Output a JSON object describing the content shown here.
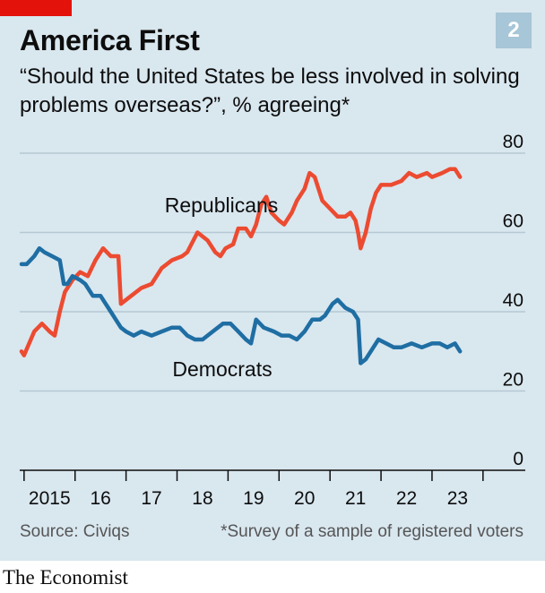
{
  "header": {
    "title": "America First",
    "chart_number": "2",
    "subtitle": "“Should the United States be less involved in solving problems overseas?”, % agreeing*"
  },
  "footer": {
    "source": "Source: Civiqs",
    "footnote": "*Survey of a sample of registered voters",
    "brand": "The Economist"
  },
  "colors": {
    "republicans": "#ec4b31",
    "democrats": "#1f6ea3",
    "background": "#d9e7ef",
    "grid": "#b5c8d3",
    "accent": "#e3120b"
  },
  "chart_data": {
    "type": "line",
    "title": "America First",
    "ylim": [
      0,
      80
    ],
    "y_ticks": [
      0,
      20,
      40,
      60,
      80
    ],
    "x_ticks": [
      "2015",
      "16",
      "17",
      "18",
      "19",
      "20",
      "21",
      "22",
      "23"
    ],
    "xlim": [
      2014.95,
      2023.95
    ],
    "grid": true,
    "series": [
      {
        "name": "Republicans",
        "points": [
          [
            2014.95,
            30
          ],
          [
            2015.0,
            29
          ],
          [
            2015.1,
            32
          ],
          [
            2015.2,
            35
          ],
          [
            2015.35,
            37
          ],
          [
            2015.5,
            35
          ],
          [
            2015.6,
            34
          ],
          [
            2015.7,
            40
          ],
          [
            2015.8,
            45
          ],
          [
            2015.95,
            48
          ],
          [
            2016.1,
            50
          ],
          [
            2016.25,
            49
          ],
          [
            2016.4,
            53
          ],
          [
            2016.55,
            56
          ],
          [
            2016.7,
            54
          ],
          [
            2016.85,
            54
          ],
          [
            2016.9,
            42
          ],
          [
            2017.1,
            44
          ],
          [
            2017.3,
            46
          ],
          [
            2017.5,
            47
          ],
          [
            2017.7,
            51
          ],
          [
            2017.9,
            53
          ],
          [
            2018.1,
            54
          ],
          [
            2018.2,
            55
          ],
          [
            2018.4,
            60
          ],
          [
            2018.6,
            58
          ],
          [
            2018.75,
            55
          ],
          [
            2018.85,
            54
          ],
          [
            2018.95,
            56
          ],
          [
            2019.1,
            57
          ],
          [
            2019.2,
            61
          ],
          [
            2019.35,
            61
          ],
          [
            2019.45,
            59
          ],
          [
            2019.55,
            62
          ],
          [
            2019.65,
            67
          ],
          [
            2019.75,
            69
          ],
          [
            2019.85,
            65
          ],
          [
            2020.0,
            63
          ],
          [
            2020.1,
            62
          ],
          [
            2020.25,
            65
          ],
          [
            2020.35,
            68
          ],
          [
            2020.5,
            71
          ],
          [
            2020.6,
            75
          ],
          [
            2020.7,
            74
          ],
          [
            2020.85,
            68
          ],
          [
            2021.0,
            66
          ],
          [
            2021.15,
            64
          ],
          [
            2021.3,
            64
          ],
          [
            2021.4,
            65
          ],
          [
            2021.5,
            63
          ],
          [
            2021.55,
            60
          ],
          [
            2021.6,
            56
          ],
          [
            2021.7,
            60
          ],
          [
            2021.8,
            66
          ],
          [
            2021.9,
            70
          ],
          [
            2022.0,
            72
          ],
          [
            2022.2,
            72
          ],
          [
            2022.4,
            73
          ],
          [
            2022.55,
            75
          ],
          [
            2022.7,
            74
          ],
          [
            2022.9,
            75
          ],
          [
            2023.0,
            74
          ],
          [
            2023.2,
            75
          ],
          [
            2023.35,
            76
          ],
          [
            2023.45,
            76
          ],
          [
            2023.55,
            74
          ]
        ]
      },
      {
        "name": "Democrats",
        "points": [
          [
            2014.95,
            52
          ],
          [
            2015.05,
            52
          ],
          [
            2015.2,
            54
          ],
          [
            2015.3,
            56
          ],
          [
            2015.4,
            55
          ],
          [
            2015.55,
            54
          ],
          [
            2015.7,
            53
          ],
          [
            2015.78,
            47
          ],
          [
            2015.85,
            47
          ],
          [
            2015.95,
            49
          ],
          [
            2016.1,
            48
          ],
          [
            2016.2,
            47
          ],
          [
            2016.35,
            44
          ],
          [
            2016.5,
            44
          ],
          [
            2016.6,
            42
          ],
          [
            2016.7,
            40
          ],
          [
            2016.8,
            38
          ],
          [
            2016.9,
            36
          ],
          [
            2017.0,
            35
          ],
          [
            2017.15,
            34
          ],
          [
            2017.3,
            35
          ],
          [
            2017.5,
            34
          ],
          [
            2017.7,
            35
          ],
          [
            2017.9,
            36
          ],
          [
            2018.05,
            36
          ],
          [
            2018.2,
            34
          ],
          [
            2018.35,
            33
          ],
          [
            2018.5,
            33
          ],
          [
            2018.7,
            35
          ],
          [
            2018.9,
            37
          ],
          [
            2019.05,
            37
          ],
          [
            2019.2,
            35
          ],
          [
            2019.35,
            33
          ],
          [
            2019.45,
            32
          ],
          [
            2019.55,
            38
          ],
          [
            2019.7,
            36
          ],
          [
            2019.9,
            35
          ],
          [
            2020.05,
            34
          ],
          [
            2020.2,
            34
          ],
          [
            2020.35,
            33
          ],
          [
            2020.5,
            35
          ],
          [
            2020.65,
            38
          ],
          [
            2020.8,
            38
          ],
          [
            2020.9,
            39
          ],
          [
            2021.05,
            42
          ],
          [
            2021.15,
            43
          ],
          [
            2021.3,
            41
          ],
          [
            2021.45,
            40
          ],
          [
            2021.55,
            38
          ],
          [
            2021.6,
            27
          ],
          [
            2021.7,
            28
          ],
          [
            2021.85,
            31
          ],
          [
            2021.95,
            33
          ],
          [
            2022.1,
            32
          ],
          [
            2022.25,
            31
          ],
          [
            2022.4,
            31
          ],
          [
            2022.6,
            32
          ],
          [
            2022.8,
            31
          ],
          [
            2023.0,
            32
          ],
          [
            2023.15,
            32
          ],
          [
            2023.3,
            31
          ],
          [
            2023.45,
            32
          ],
          [
            2023.55,
            30
          ]
        ]
      }
    ]
  }
}
